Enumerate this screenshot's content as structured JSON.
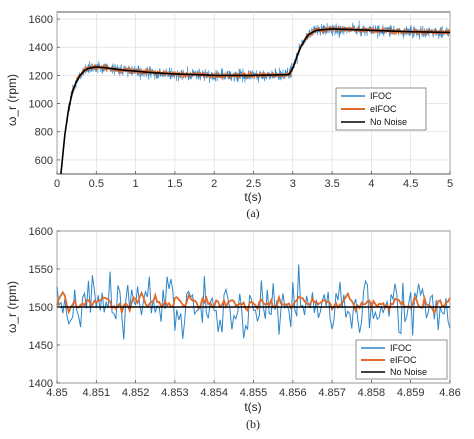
{
  "colors": {
    "ifoc": "#2e86c8",
    "eifoc": "#e06a2c",
    "no_noise": "#000000",
    "grid": "#d9d9d9",
    "axis": "#555555"
  },
  "chart_data": [
    {
      "type": "line",
      "panel_label": "(a)",
      "xlabel": "t(s)",
      "ylabel": "ω_r (rpm)",
      "xlim": [
        0,
        5
      ],
      "ylim": [
        500,
        1650
      ],
      "x_ticks": [
        "0",
        "0.5",
        "1",
        "1.5",
        "2",
        "2.5",
        "3",
        "3.5",
        "4",
        "4.5",
        "5"
      ],
      "y_ticks": [
        "600",
        "800",
        "1000",
        "1200",
        "1400",
        "1600"
      ],
      "grid": true,
      "legend_position": "right",
      "series": [
        {
          "name": "IFOC",
          "color": "#2e86c8",
          "noise_band": 75
        },
        {
          "name": "eIFOC",
          "color": "#e06a2c",
          "noise_band": 35
        },
        {
          "name": "No Noise",
          "color": "#000000",
          "noise_band": 0
        }
      ],
      "reference_curve": {
        "x": [
          0.05,
          0.1,
          0.15,
          0.2,
          0.25,
          0.3,
          0.35,
          0.4,
          0.5,
          0.6,
          0.8,
          1.0,
          1.2,
          1.5,
          1.8,
          2.0,
          2.5,
          2.95,
          3.0,
          3.05,
          3.1,
          3.15,
          3.2,
          3.3,
          3.5,
          4.0,
          4.5,
          5.0
        ],
        "y": [
          500,
          780,
          970,
          1090,
          1160,
          1205,
          1235,
          1250,
          1260,
          1255,
          1240,
          1230,
          1220,
          1210,
          1205,
          1200,
          1200,
          1205,
          1250,
          1330,
          1400,
          1450,
          1490,
          1520,
          1530,
          1520,
          1510,
          1505
        ]
      }
    },
    {
      "type": "line",
      "panel_label": "(b)",
      "xlabel": "t(s)",
      "ylabel": "ω_r (rpm)",
      "xlim": [
        4.85,
        4.86
      ],
      "ylim": [
        1400,
        1600
      ],
      "x_ticks": [
        "4.85",
        "4.851",
        "4.852",
        "4.853",
        "4.854",
        "4.855",
        "4.856",
        "4.857",
        "4.858",
        "4.859",
        "4.86"
      ],
      "y_ticks": [
        "1400",
        "1450",
        "1500",
        "1550",
        "1600"
      ],
      "grid": true,
      "legend_position": "bottom-right",
      "series": [
        {
          "name": "IFOC",
          "color": "#2e86c8",
          "mean": 1500,
          "amplitude": 75
        },
        {
          "name": "eIFOC",
          "color": "#e06a2c",
          "mean": 1505,
          "amplitude": 35
        },
        {
          "name": "No Noise",
          "color": "#000000",
          "value": 1500
        }
      ]
    }
  ]
}
